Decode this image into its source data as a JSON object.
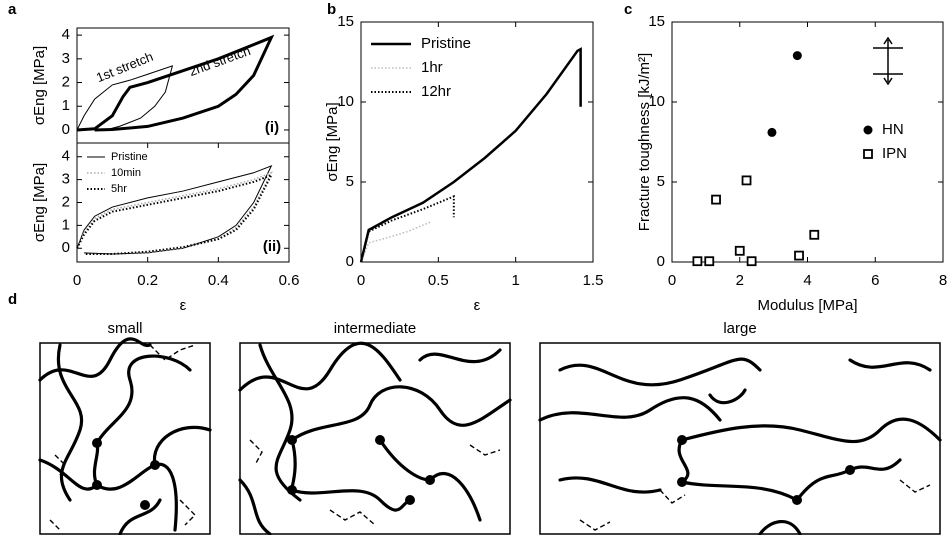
{
  "chart_data": [
    {
      "type": "line",
      "panel": "a",
      "ylabel": "σEng [MPa]",
      "xlim": [
        0,
        0.6
      ],
      "ylim": [
        -0.55,
        4.3
      ],
      "yticks": [
        0,
        1,
        2,
        3,
        4
      ],
      "annotations": [
        "(i)"
      ],
      "series": [
        {
          "name": "1st stretch",
          "color": "#000000",
          "width": 1,
          "style": "solid",
          "x": [
            0,
            0.02,
            0.05,
            0.1,
            0.15,
            0.2,
            0.27,
            0.25,
            0.22,
            0.18,
            0.12,
            0.08
          ],
          "values": [
            0,
            0.6,
            1.3,
            1.9,
            2.1,
            2.35,
            2.7,
            1.6,
            1.0,
            0.5,
            0.15,
            0
          ]
        },
        {
          "name": "2nd stretch",
          "color": "#000000",
          "width": 3,
          "style": "solid",
          "x": [
            0,
            0.05,
            0.1,
            0.13,
            0.15,
            0.2,
            0.3,
            0.4,
            0.5,
            0.55,
            0.5,
            0.45,
            0.4,
            0.3,
            0.2,
            0.1,
            0.05
          ],
          "values": [
            0,
            0.05,
            0.6,
            1.4,
            1.8,
            2.0,
            2.5,
            3.0,
            3.6,
            3.9,
            2.3,
            1.5,
            1.0,
            0.5,
            0.15,
            0.02,
            0
          ]
        }
      ]
    },
    {
      "type": "line",
      "ylabel": "σEng [MPa]",
      "xlabel": "ε",
      "xlim": [
        0,
        0.6
      ],
      "ylim": [
        -0.6,
        4.6
      ],
      "yticks": [
        0,
        1,
        2,
        3,
        4
      ],
      "xticks": [
        0,
        0.2,
        0.4,
        0.6
      ],
      "legend": "upper left",
      "annotations": [
        "(ii)"
      ],
      "series": [
        {
          "name": "Pristine",
          "color": "#000000",
          "width": 1,
          "style": "solid",
          "x": [
            0,
            0.02,
            0.05,
            0.1,
            0.2,
            0.3,
            0.4,
            0.5,
            0.55,
            0.5,
            0.45,
            0.4,
            0.3,
            0.2,
            0.1,
            0.02
          ],
          "values": [
            0,
            0.8,
            1.4,
            1.8,
            2.2,
            2.5,
            2.9,
            3.3,
            3.6,
            2.0,
            1.0,
            0.5,
            0,
            -0.2,
            -0.25,
            -0.2
          ]
        },
        {
          "name": "10min",
          "color": "#aaaaaa",
          "width": 1.5,
          "style": "dotted",
          "x": [
            0,
            0.02,
            0.05,
            0.1,
            0.2,
            0.3,
            0.4,
            0.5,
            0.55,
            0.5,
            0.45,
            0.4,
            0.3,
            0.2,
            0.1,
            0.02
          ],
          "values": [
            0,
            0.7,
            1.3,
            1.7,
            2.0,
            2.3,
            2.6,
            3.0,
            3.3,
            1.8,
            0.9,
            0.4,
            0,
            -0.2,
            -0.25,
            -0.25
          ]
        },
        {
          "name": "5hr",
          "color": "#000000",
          "width": 2,
          "style": "dotted",
          "x": [
            0,
            0.02,
            0.05,
            0.1,
            0.2,
            0.3,
            0.4,
            0.5,
            0.55,
            0.5,
            0.45,
            0.4,
            0.3,
            0.2,
            0.1,
            0.02
          ],
          "values": [
            0,
            0.6,
            1.2,
            1.6,
            1.9,
            2.2,
            2.5,
            2.9,
            3.2,
            1.7,
            0.8,
            0.4,
            0.05,
            -0.15,
            -0.25,
            -0.25
          ]
        }
      ]
    },
    {
      "type": "line",
      "panel": "b",
      "ylabel": "σEng [MPa]",
      "xlabel": "ε",
      "xlim": [
        0,
        1.5
      ],
      "ylim": [
        0,
        15
      ],
      "xticks": [
        0,
        0.5,
        1,
        1.5
      ],
      "yticks": [
        0,
        5,
        10,
        15
      ],
      "legend": "upper left",
      "series": [
        {
          "name": "Pristine",
          "color": "#000000",
          "width": 2.5,
          "style": "solid",
          "x": [
            0,
            0.05,
            0.2,
            0.4,
            0.6,
            0.8,
            1.0,
            1.2,
            1.4,
            1.42,
            1.42
          ],
          "values": [
            0,
            2,
            2.8,
            3.7,
            5.0,
            6.5,
            8.2,
            10.5,
            13.2,
            13.3,
            9.7
          ]
        },
        {
          "name": "1hr",
          "color": "#bbbbbb",
          "width": 1.5,
          "style": "dotted",
          "x": [
            0,
            0.05,
            0.2,
            0.3,
            0.4,
            0.45
          ],
          "values": [
            0,
            1.2,
            1.6,
            1.9,
            2.3,
            2.5
          ]
        },
        {
          "name": "12hr",
          "color": "#000000",
          "width": 2,
          "style": "dotted",
          "x": [
            0,
            0.05,
            0.2,
            0.4,
            0.6,
            0.6
          ],
          "values": [
            0,
            1.9,
            2.6,
            3.3,
            4.1,
            2.8
          ]
        }
      ]
    },
    {
      "type": "scatter",
      "panel": "c",
      "ylabel": "Fracture toughness [kJ/m²]",
      "xlabel": "Modulus [MPa]",
      "xlim": [
        0,
        8
      ],
      "ylim": [
        0,
        15
      ],
      "xticks": [
        0,
        2,
        4,
        6,
        8
      ],
      "yticks": [
        0,
        5,
        10,
        15
      ],
      "legend": "center right",
      "series": [
        {
          "name": "HN",
          "color": "#000000",
          "marker": "circle",
          "x": [
            2.95,
            3.7
          ],
          "values": [
            8.1,
            12.9
          ]
        },
        {
          "name": "IPN",
          "color": "#000000",
          "marker": "square",
          "x": [
            0.75,
            1.1,
            1.3,
            2.0,
            2.2,
            2.35,
            3.75,
            4.2
          ],
          "values": [
            0.05,
            0.05,
            3.9,
            0.7,
            5.1,
            0.05,
            0.4,
            1.7
          ]
        }
      ]
    }
  ],
  "diagram": {
    "panel": "d",
    "labels": [
      "small",
      "intermediate",
      "large"
    ]
  }
}
